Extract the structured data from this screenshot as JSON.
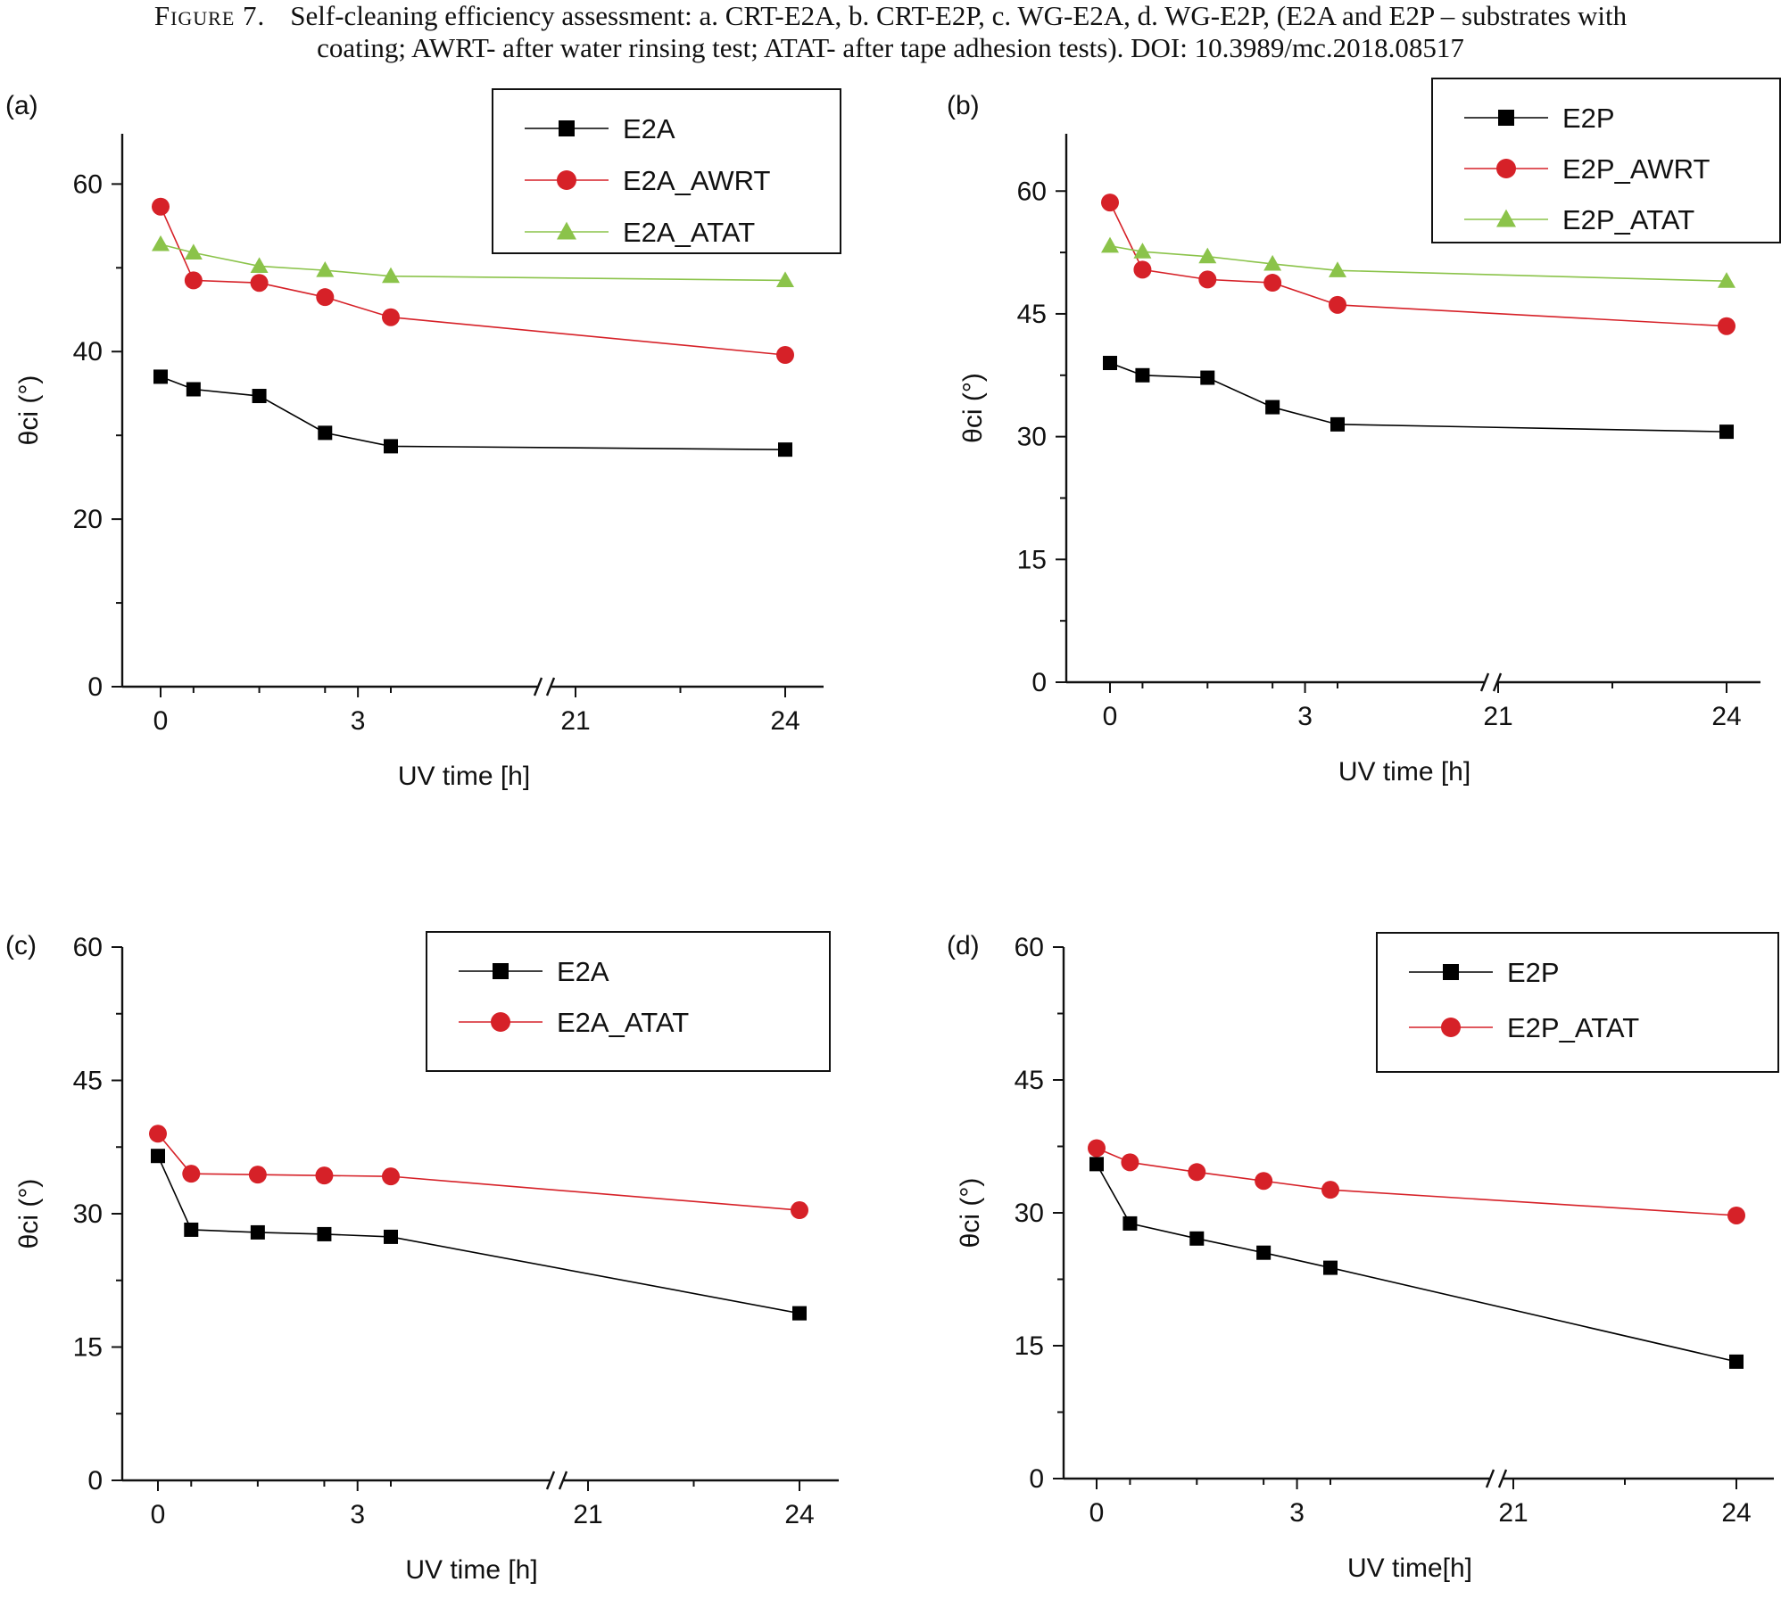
{
  "figure": {
    "caption_lead": "Figure 7.",
    "caption_line1": "Self-cleaning efficiency assessment: a. CRT-E2A, b. CRT-E2P, c. WG-E2A, d. WG-E2P, (E2A and E2P – substrates with",
    "caption_line2": "coating; AWRT- after water rinsing test; ATAT- after tape adhesion tests). DOI: 10.3989/mc.2018.08517"
  },
  "colors": {
    "black": "#000000",
    "red": "#d62128",
    "green": "#8bc34a",
    "axis": "#111111"
  },
  "chart_data": [
    {
      "panel": "(a)",
      "type": "line",
      "title": "",
      "xlabel": "UV time [h]",
      "ylabel": "θci (°)",
      "x_ticks": [
        "0",
        "3",
        "21",
        "24"
      ],
      "axis_break": [
        3.5,
        21
      ],
      "y_ticks": [
        0,
        20,
        40,
        60
      ],
      "ylim": [
        0,
        66
      ],
      "legend": "top-right",
      "series": [
        {
          "name": "E2A",
          "marker": "square",
          "color": "#000000",
          "x": [
            0,
            0.5,
            1.5,
            2.5,
            3.5,
            24
          ],
          "y": [
            37,
            35.5,
            34.7,
            30.3,
            28.7,
            28.3
          ]
        },
        {
          "name": "E2A_AWRT",
          "marker": "circle",
          "color": "#d62128",
          "x": [
            0,
            0.5,
            1.5,
            2.5,
            3.5,
            24
          ],
          "y": [
            57.3,
            48.5,
            48.2,
            46.5,
            44.1,
            39.6
          ]
        },
        {
          "name": "E2A_ATAT",
          "marker": "triangle",
          "color": "#8bc34a",
          "x": [
            0,
            0.5,
            1.5,
            2.5,
            3.5,
            24
          ],
          "y": [
            52.8,
            51.8,
            50.2,
            49.7,
            49,
            48.5
          ]
        }
      ]
    },
    {
      "panel": "(b)",
      "type": "line",
      "title": "",
      "xlabel": "UV time [h]",
      "ylabel": "θci (°)",
      "x_ticks": [
        "0",
        "3",
        "21",
        "24"
      ],
      "axis_break": [
        3.5,
        21
      ],
      "y_ticks": [
        0,
        15,
        30,
        45,
        60
      ],
      "ylim": [
        0,
        67
      ],
      "legend": "top-right",
      "series": [
        {
          "name": "E2P",
          "marker": "square",
          "color": "#000000",
          "x": [
            0,
            0.5,
            1.5,
            2.5,
            3.5,
            24
          ],
          "y": [
            39,
            37.5,
            37.2,
            33.6,
            31.5,
            30.6
          ]
        },
        {
          "name": "E2P_AWRT",
          "marker": "circle",
          "color": "#d62128",
          "x": [
            0,
            0.5,
            1.5,
            2.5,
            3.5,
            24
          ],
          "y": [
            58.6,
            50.4,
            49.2,
            48.8,
            46.1,
            43.5
          ]
        },
        {
          "name": "E2P_ATAT",
          "marker": "triangle",
          "color": "#8bc34a",
          "x": [
            0,
            0.5,
            1.5,
            2.5,
            3.5,
            24
          ],
          "y": [
            53.3,
            52.6,
            52,
            51.1,
            50.3,
            49
          ]
        }
      ]
    },
    {
      "panel": "(c)",
      "type": "line",
      "title": "",
      "xlabel": "UV time [h]",
      "ylabel": "θci (°)",
      "x_ticks": [
        "0",
        "3",
        "21",
        "24"
      ],
      "axis_break": [
        3.5,
        21
      ],
      "y_ticks": [
        0,
        15,
        30,
        45,
        60
      ],
      "ylim": [
        0,
        60
      ],
      "legend": "top-right",
      "series": [
        {
          "name": "E2A",
          "marker": "square",
          "color": "#000000",
          "x": [
            0,
            0.5,
            1.5,
            2.5,
            3.5,
            24
          ],
          "y": [
            36.5,
            28.2,
            27.9,
            27.7,
            27.4,
            18.8
          ]
        },
        {
          "name": "E2A_ATAT",
          "marker": "circle",
          "color": "#d62128",
          "x": [
            0,
            0.5,
            1.5,
            2.5,
            3.5,
            24
          ],
          "y": [
            39,
            34.5,
            34.4,
            34.3,
            34.2,
            30.4
          ]
        }
      ]
    },
    {
      "panel": "(d)",
      "type": "line",
      "title": "",
      "xlabel": "UV time[h]",
      "ylabel": "θci (°)",
      "x_ticks": [
        "0",
        "3",
        "21",
        "24"
      ],
      "axis_break": [
        3.5,
        21
      ],
      "y_ticks": [
        0,
        15,
        30,
        45,
        60
      ],
      "ylim": [
        0,
        60
      ],
      "legend": "top-right",
      "series": [
        {
          "name": "E2P",
          "marker": "square",
          "color": "#000000",
          "x": [
            0,
            0.5,
            1.5,
            2.5,
            3.5,
            24
          ],
          "y": [
            35.5,
            28.8,
            27.1,
            25.5,
            23.8,
            13.2
          ]
        },
        {
          "name": "E2P_ATAT",
          "marker": "circle",
          "color": "#d62128",
          "x": [
            0,
            0.5,
            1.5,
            2.5,
            3.5,
            24
          ],
          "y": [
            37.3,
            35.7,
            34.6,
            33.6,
            32.6,
            29.7
          ]
        }
      ]
    }
  ]
}
